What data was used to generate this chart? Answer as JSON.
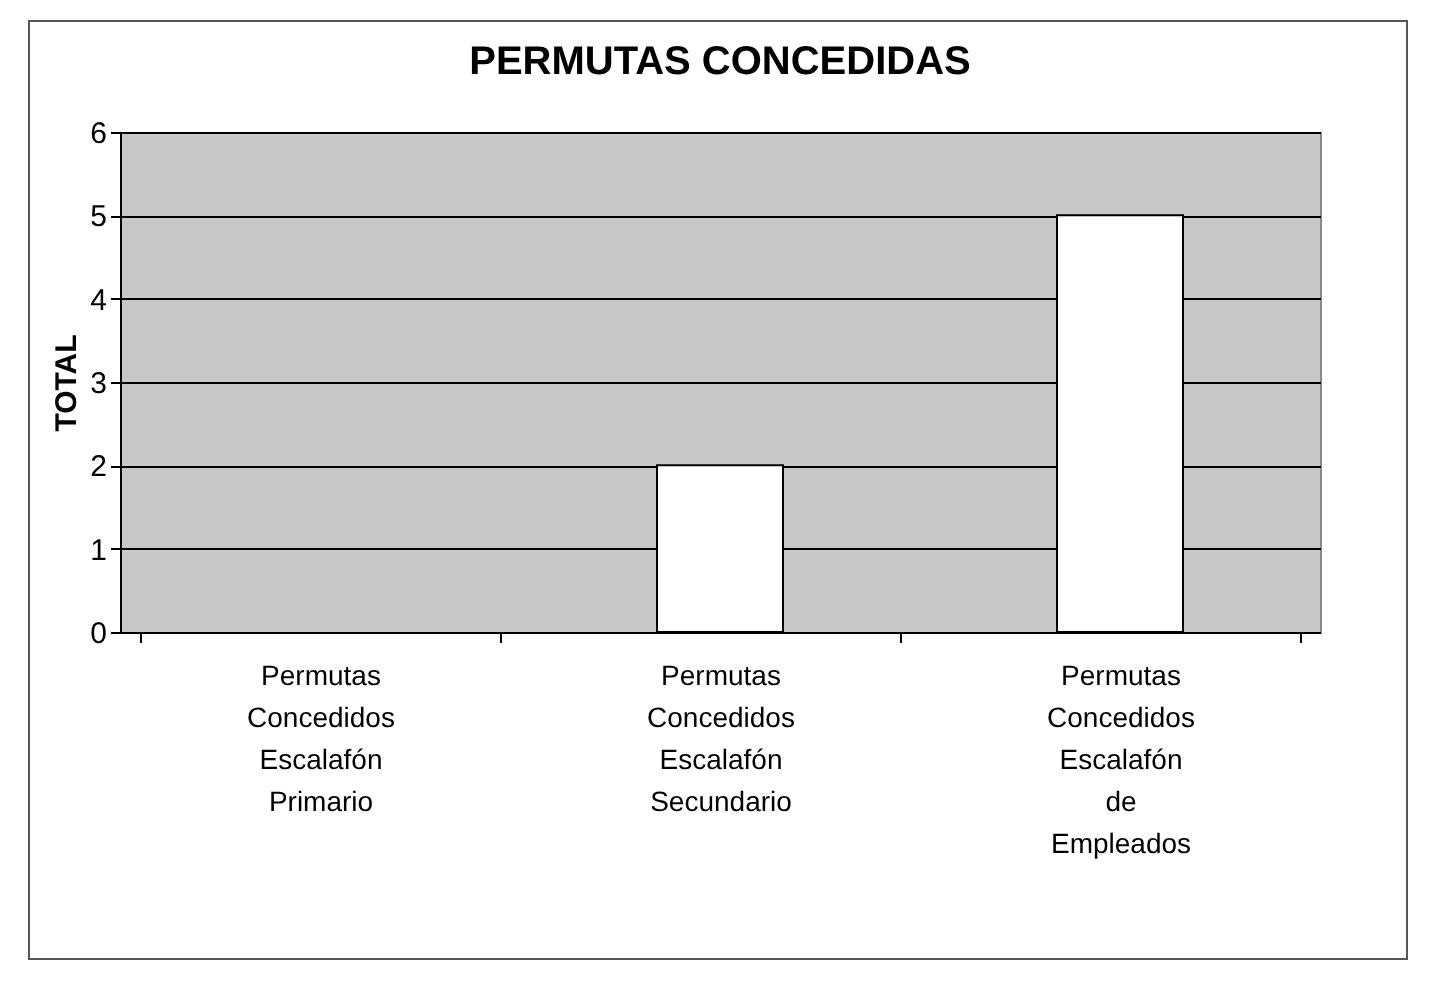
{
  "chart_data": {
    "type": "bar",
    "title": "PERMUTAS CONCEDIDAS",
    "ylabel": "TOTAL",
    "categories": [
      "Permutas Concedidos Escalafón Primario",
      "Permutas Concedidos Escalafón Secundario",
      "Permutas Concedidos Escalafón de Empleados"
    ],
    "values": [
      0,
      2,
      5
    ],
    "color": "#ffffff",
    "ylim": [
      0,
      6
    ],
    "yticks": [
      0,
      1,
      2,
      3,
      4,
      5,
      6
    ],
    "grid": true
  }
}
